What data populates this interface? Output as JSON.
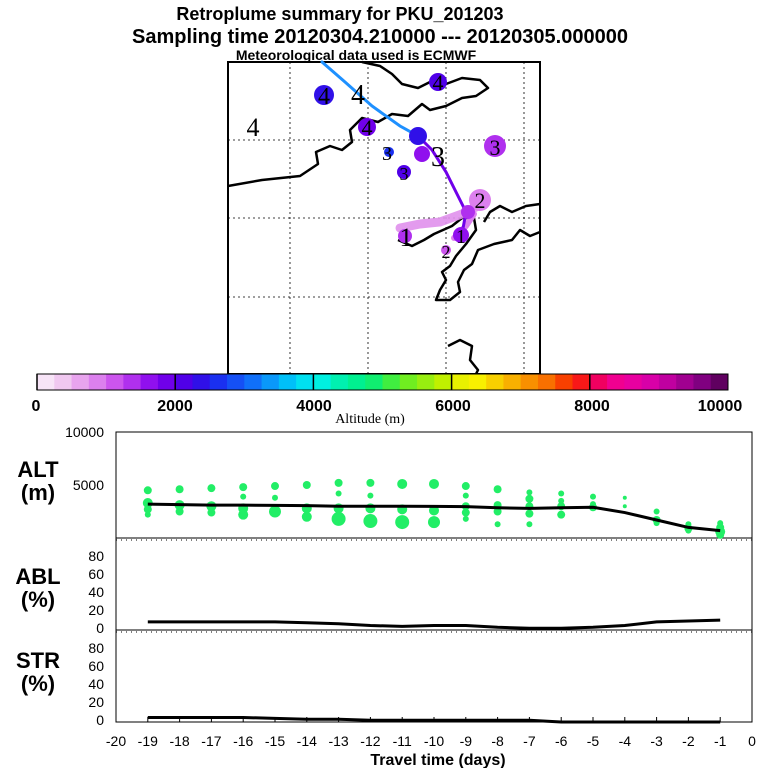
{
  "header": {
    "title": "Retroplume summary for PKU_201203",
    "sampling": "Sampling time   20120304.210000 --- 20120305.000000",
    "met": "Meteorological data used is ECMWF"
  },
  "colors": {
    "alt_dots": "#22ee66",
    "line": "#000000",
    "traj_start": "#1e90ff",
    "traj_end": "#a020f0"
  },
  "chart_data": [
    {
      "type": "map",
      "title": "Retroplume trajectory map",
      "map_labels": [
        {
          "text": "4",
          "color": "#000000"
        },
        {
          "text": "4",
          "color": "#000000"
        },
        {
          "text": "4",
          "color": "#000000"
        },
        {
          "text": "4",
          "color": "#000000"
        },
        {
          "text": "4",
          "color": "#000000"
        },
        {
          "text": "3",
          "color": "#000000"
        },
        {
          "text": "3",
          "color": "#000000"
        },
        {
          "text": "3",
          "color": "#000000"
        },
        {
          "text": "3",
          "color": "#000000"
        },
        {
          "text": "2",
          "color": "#000000"
        },
        {
          "text": "2",
          "color": "#000000"
        },
        {
          "text": "1",
          "color": "#000000"
        },
        {
          "text": "1",
          "color": "#000000"
        }
      ]
    },
    {
      "type": "colorbar",
      "xlabel": "Altitude (m)",
      "range": [
        0,
        10000
      ],
      "tick_labels": [
        "0",
        "2000",
        "4000",
        "6000",
        "8000",
        "10000"
      ],
      "colors": [
        "#f7e4f7",
        "#f0c8f0",
        "#e8a4ee",
        "#dc80ee",
        "#cc55ee",
        "#b030ee",
        "#9010ee",
        "#7000ea",
        "#5000e8",
        "#3010e8",
        "#1a30f0",
        "#1550f5",
        "#1070fa",
        "#0a98fa",
        "#00c0f8",
        "#00e0f0",
        "#00f0e0",
        "#00f0b0",
        "#00f090",
        "#10ee70",
        "#40ee40",
        "#70ee20",
        "#98ee10",
        "#c0f000",
        "#e8f000",
        "#f8f000",
        "#f8d000",
        "#f8b000",
        "#f89000",
        "#f87000",
        "#f84000",
        "#f81818",
        "#f00060",
        "#f00090",
        "#e800a0",
        "#d800a8",
        "#c000a0",
        "#a00090",
        "#800080",
        "#600060"
      ]
    },
    {
      "type": "scatter+line",
      "ylabel": "ALT\n(m)",
      "ylim": [
        0,
        10000
      ],
      "ytick_labels": [
        "5000",
        "10000"
      ],
      "xlim": [
        -20,
        0
      ],
      "x": [
        -19,
        -18,
        -17,
        -16,
        -15,
        -14,
        -13,
        -12,
        -11,
        -10,
        -9,
        -8,
        -7,
        -6,
        -5,
        -4,
        -3,
        -2,
        -1
      ],
      "line_y": [
        3200,
        3150,
        3100,
        3100,
        3080,
        3050,
        3000,
        3000,
        3000,
        2980,
        2960,
        2850,
        2800,
        2850,
        2900,
        2400,
        1700,
        1000,
        700
      ],
      "dots": [
        {
          "x": -19,
          "y": 4500,
          "size": 4
        },
        {
          "x": -19,
          "y": 3300,
          "size": 5
        },
        {
          "x": -19,
          "y": 2700,
          "size": 4
        },
        {
          "x": -19,
          "y": 2200,
          "size": 3
        },
        {
          "x": -18,
          "y": 4600,
          "size": 4
        },
        {
          "x": -18,
          "y": 3100,
          "size": 5
        },
        {
          "x": -18,
          "y": 2500,
          "size": 4
        },
        {
          "x": -17,
          "y": 4700,
          "size": 4
        },
        {
          "x": -17,
          "y": 3000,
          "size": 5
        },
        {
          "x": -17,
          "y": 2400,
          "size": 4
        },
        {
          "x": -16,
          "y": 4800,
          "size": 4
        },
        {
          "x": -16,
          "y": 3900,
          "size": 3
        },
        {
          "x": -16,
          "y": 2800,
          "size": 5
        },
        {
          "x": -16,
          "y": 2200,
          "size": 5
        },
        {
          "x": -15,
          "y": 4900,
          "size": 4
        },
        {
          "x": -15,
          "y": 3800,
          "size": 3
        },
        {
          "x": -15,
          "y": 2500,
          "size": 6
        },
        {
          "x": -14,
          "y": 5000,
          "size": 4
        },
        {
          "x": -14,
          "y": 2800,
          "size": 5
        },
        {
          "x": -14,
          "y": 2000,
          "size": 5
        },
        {
          "x": -13,
          "y": 5200,
          "size": 4
        },
        {
          "x": -13,
          "y": 4200,
          "size": 3
        },
        {
          "x": -13,
          "y": 2800,
          "size": 5
        },
        {
          "x": -13,
          "y": 1800,
          "size": 7
        },
        {
          "x": -12,
          "y": 5200,
          "size": 4
        },
        {
          "x": -12,
          "y": 4000,
          "size": 3
        },
        {
          "x": -12,
          "y": 2800,
          "size": 5
        },
        {
          "x": -12,
          "y": 1600,
          "size": 7
        },
        {
          "x": -11,
          "y": 5100,
          "size": 5
        },
        {
          "x": -11,
          "y": 2700,
          "size": 5
        },
        {
          "x": -11,
          "y": 1500,
          "size": 7
        },
        {
          "x": -10,
          "y": 5100,
          "size": 5
        },
        {
          "x": -10,
          "y": 2600,
          "size": 5
        },
        {
          "x": -10,
          "y": 1500,
          "size": 6
        },
        {
          "x": -9,
          "y": 4900,
          "size": 4
        },
        {
          "x": -9,
          "y": 4000,
          "size": 3
        },
        {
          "x": -9,
          "y": 3000,
          "size": 4
        },
        {
          "x": -9,
          "y": 2400,
          "size": 4
        },
        {
          "x": -9,
          "y": 1800,
          "size": 3
        },
        {
          "x": -8,
          "y": 4600,
          "size": 4
        },
        {
          "x": -8,
          "y": 3100,
          "size": 4
        },
        {
          "x": -8,
          "y": 2500,
          "size": 4
        },
        {
          "x": -8,
          "y": 1300,
          "size": 3
        },
        {
          "x": -7,
          "y": 4300,
          "size": 3
        },
        {
          "x": -7,
          "y": 3700,
          "size": 4
        },
        {
          "x": -7,
          "y": 3000,
          "size": 4
        },
        {
          "x": -7,
          "y": 2300,
          "size": 4
        },
        {
          "x": -7,
          "y": 1300,
          "size": 3
        },
        {
          "x": -6,
          "y": 4200,
          "size": 3
        },
        {
          "x": -6,
          "y": 3500,
          "size": 3
        },
        {
          "x": -6,
          "y": 3000,
          "size": 4
        },
        {
          "x": -6,
          "y": 2200,
          "size": 4
        },
        {
          "x": -5,
          "y": 3900,
          "size": 3
        },
        {
          "x": -5,
          "y": 3200,
          "size": 3
        },
        {
          "x": -5,
          "y": 2900,
          "size": 4
        },
        {
          "x": -4,
          "y": 3800,
          "size": 2
        },
        {
          "x": -4,
          "y": 3000,
          "size": 2
        },
        {
          "x": -3,
          "y": 2500,
          "size": 3
        },
        {
          "x": -3,
          "y": 1700,
          "size": 4
        },
        {
          "x": -3,
          "y": 1400,
          "size": 3
        },
        {
          "x": -2,
          "y": 1300,
          "size": 3
        },
        {
          "x": -2,
          "y": 900,
          "size": 4
        },
        {
          "x": -2,
          "y": 700,
          "size": 3
        },
        {
          "x": -1,
          "y": 1400,
          "size": 3
        },
        {
          "x": -1,
          "y": 1000,
          "size": 4
        },
        {
          "x": -1,
          "y": 600,
          "size": 5
        },
        {
          "x": -1,
          "y": 300,
          "size": 4
        }
      ]
    },
    {
      "type": "line",
      "ylabel": "ABL\n(%)",
      "ylim": [
        0,
        100
      ],
      "ytick_labels": [
        "0",
        "20",
        "40",
        "60",
        "80"
      ],
      "xlim": [
        -20,
        0
      ],
      "x": [
        -19,
        -18,
        -17,
        -16,
        -15,
        -14,
        -13,
        -12,
        -11,
        -10,
        -9,
        -8,
        -7,
        -6,
        -5,
        -4,
        -3,
        -2,
        -1
      ],
      "y": [
        9,
        9,
        9,
        9,
        9,
        8,
        7,
        5,
        4,
        5,
        5,
        3,
        2,
        2,
        3,
        5,
        9,
        10,
        11
      ]
    },
    {
      "type": "line",
      "ylabel": "STR\n(%)",
      "ylim": [
        0,
        100
      ],
      "ytick_labels": [
        "0",
        "20",
        "40",
        "60",
        "80"
      ],
      "xlim": [
        -20,
        0
      ],
      "xlabel": "Travel time (days)",
      "xtick_labels": [
        "-20",
        "-19",
        "-18",
        "-17",
        "-16",
        "-15",
        "-14",
        "-13",
        "-12",
        "-11",
        "-10",
        "-9",
        "-8",
        "-7",
        "-6",
        "-5",
        "-4",
        "-3",
        "-2",
        "-1",
        "0"
      ],
      "x": [
        -19,
        -18,
        -17,
        -16,
        -15,
        -14,
        -13,
        -12,
        -11,
        -10,
        -9,
        -8,
        -7,
        -6,
        -5,
        -4,
        -3,
        -2,
        -1
      ],
      "y": [
        5,
        5,
        5,
        5,
        4,
        3,
        3,
        2,
        2,
        2,
        2,
        2,
        2,
        0,
        0,
        0,
        0,
        0,
        0
      ]
    }
  ]
}
